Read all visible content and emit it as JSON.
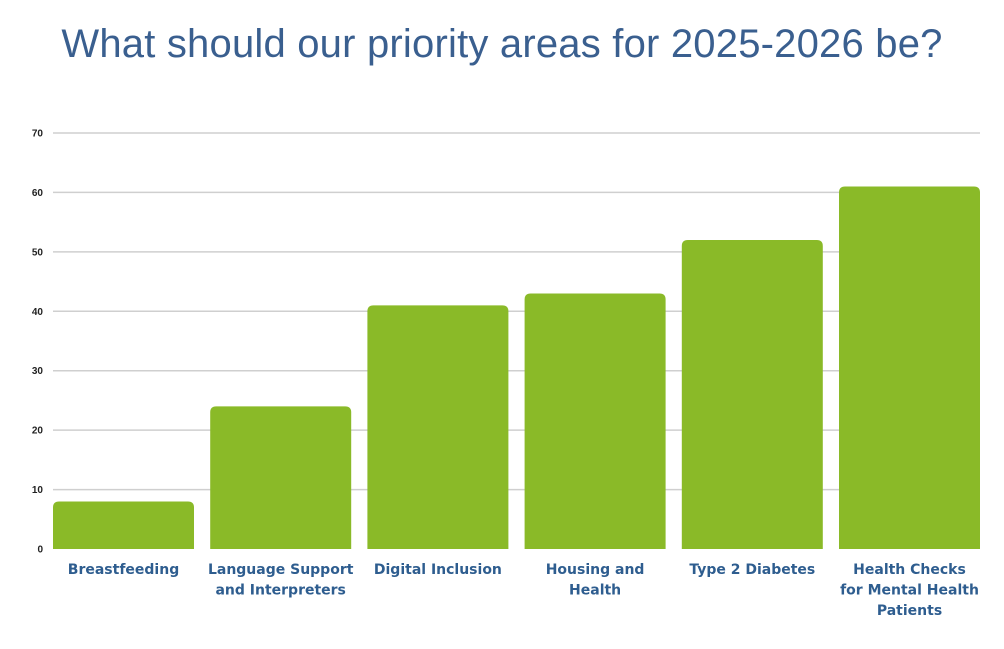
{
  "chart_data": {
    "type": "bar",
    "title": "What should our priority areas for 2025-2026 be?",
    "xlabel": "",
    "ylabel": "",
    "ylim": [
      0,
      70
    ],
    "yticks": [
      0,
      10,
      20,
      30,
      40,
      50,
      60,
      70
    ],
    "grid": true,
    "categories": [
      [
        "Breastfeeding"
      ],
      [
        "Language Support",
        "and Interpreters"
      ],
      [
        "Digital Inclusion"
      ],
      [
        "Housing and",
        "Health"
      ],
      [
        "Type 2 Diabetes"
      ],
      [
        "Health Checks",
        "for Mental Health",
        "Patients"
      ]
    ],
    "values": [
      8,
      24,
      41,
      43,
      52,
      61
    ],
    "colors": {
      "bar": "#8aba28",
      "title": "#3a5f8f",
      "category_label": "#2e5d8f",
      "grid": "#cfcfcf"
    }
  }
}
